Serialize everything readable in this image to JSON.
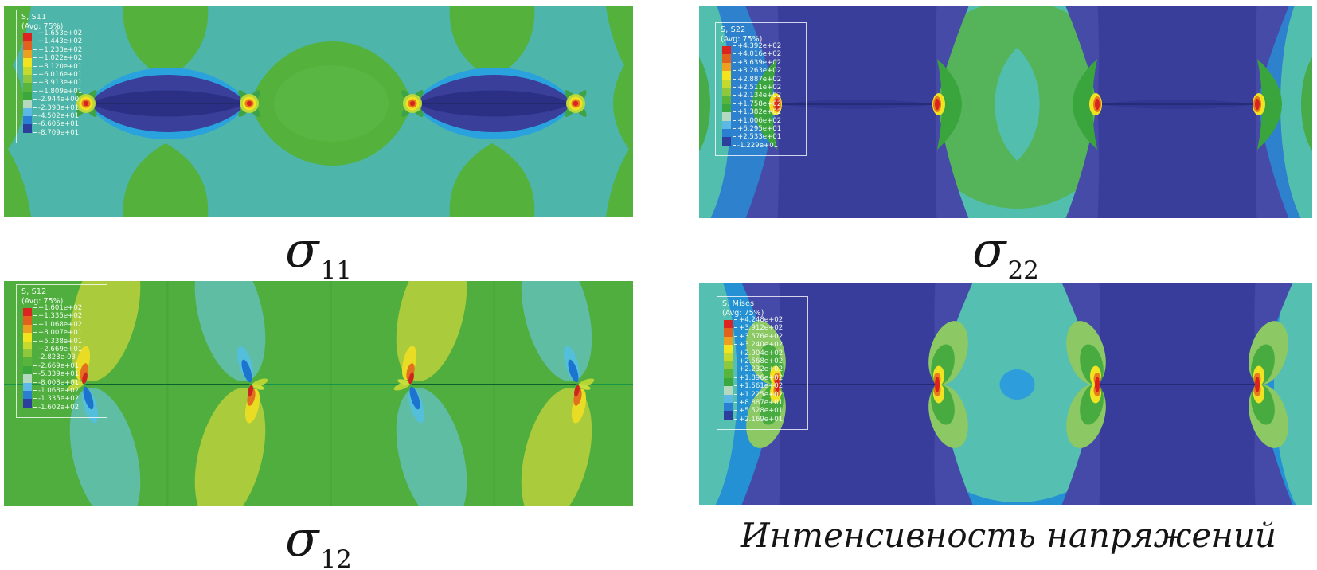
{
  "figure": {
    "background": "#ffffff"
  },
  "palette": {
    "legend_chips": [
      "#dc231f",
      "#e2611d",
      "#eda01f",
      "#f2e51f",
      "#c5da2e",
      "#90c83d",
      "#58b43a",
      "#3aa83c",
      "#b5d9c0",
      "#5cb9e6",
      "#2a7fd0",
      "#2c3f9c"
    ],
    "hot_spot_red": "#d8231f",
    "hot_spot_orange": "#e67c1d",
    "hot_spot_yellow": "#f2e322",
    "s11_background_teal": "#4db5aa",
    "s22_background_blue": "#2e81cc",
    "s12_background_green": "#4fae3d",
    "mises_background_blue": "#2591d5",
    "contour_navy": "#3a3f9a",
    "contour_teal": "#52bfae",
    "contour_green": "#55b45a"
  },
  "panels": [
    {
      "id": "s11",
      "legend": {
        "title": "S, S11",
        "subtitle": "(Avg: 75%)",
        "values": [
          "+1.653e+02",
          "+1.443e+02",
          "+1.233e+02",
          "+1.022e+02",
          "+8.120e+01",
          "+6.016e+01",
          "+3.913e+01",
          "+1.809e+01",
          "-2.944e+00",
          "-2.398e+01",
          "-4.502e+01",
          "-6.605e+01",
          "-8.709e+01"
        ]
      },
      "caption": {
        "symbol": "σ",
        "subscript": "11"
      }
    },
    {
      "id": "s22",
      "legend": {
        "title": "S, S22",
        "subtitle": "(Avg: 75%)",
        "values": [
          "+4.392e+02",
          "+4.016e+02",
          "+3.639e+02",
          "+3.263e+02",
          "+2.887e+02",
          "+2.511e+02",
          "+2.134e+02",
          "+1.758e+02",
          "+1.382e+02",
          "+1.006e+02",
          "+6.295e+01",
          "+2.533e+01",
          "-1.229e+01"
        ]
      },
      "caption": {
        "symbol": "σ",
        "subscript": "22"
      }
    },
    {
      "id": "s12",
      "legend": {
        "title": "S, S12",
        "subtitle": "(Avg: 75%)",
        "values": [
          "+1.601e+02",
          "+1.335e+02",
          "+1.068e+02",
          "+8.007e+01",
          "+5.338e+01",
          "+2.669e+01",
          "-2.823e-03",
          "-2.669e+01",
          "-5.339e+01",
          "-8.008e+01",
          "-1.068e+02",
          "-1.335e+02",
          "-1.602e+02"
        ]
      },
      "caption": {
        "symbol": "σ",
        "subscript": "12"
      }
    },
    {
      "id": "mises",
      "legend": {
        "title": "S, Mises",
        "subtitle": "(Avg: 75%)",
        "values": [
          "+4.248e+02",
          "+3.912e+02",
          "+3.576e+02",
          "+3.240e+02",
          "+2.904e+02",
          "+2.568e+02",
          "+2.232e+02",
          "+1.896e+02",
          "+1.561e+02",
          "+1.225e+02",
          "+8.887e+01",
          "+5.528e+01",
          "+2.169e+01"
        ]
      },
      "caption": {
        "text": "Интенсивность напряжений"
      }
    }
  ],
  "chart_data": [
    {
      "type": "heatmap",
      "variant": "FEA stress contour (Abaqus-style)",
      "field": "S, S11",
      "averaging": "(Avg: 75%)",
      "caption": "σ11",
      "contour_levels": [
        165.3,
        144.3,
        123.3,
        102.2,
        81.2,
        60.16,
        39.13,
        18.09,
        -2.944,
        -23.98,
        -45.02,
        -66.05,
        -87.09
      ],
      "n_color_bands": 12,
      "colorbar": "rainbow red(max) → dark blue(min)",
      "features": "two lens-shaped compressive (navy/cyan) zones along horizontal midline cracks; 4 crack-tip red/yellow hot spots at tips; green tensile patches at top/bottom edges and hexagonal green zone between cracks on teal background"
    },
    {
      "type": "heatmap",
      "variant": "FEA stress contour (Abaqus-style)",
      "field": "S, S22",
      "averaging": "(Avg: 75%)",
      "caption": "σ22",
      "contour_levels": [
        439.2,
        401.6,
        363.9,
        326.3,
        288.7,
        251.1,
        213.4,
        175.8,
        138.2,
        100.6,
        62.95,
        25.33,
        -12.29
      ],
      "n_color_bands": 12,
      "colorbar": "rainbow red(max) → dark blue(min)",
      "features": "tall navy low-stress pillars over each crack, blue background, central teal/green ring zone between cracks, 4 crack-tip red/yellow hot spots with green kidneys facing away from cracks"
    },
    {
      "type": "heatmap",
      "variant": "FEA stress contour (Abaqus-style)",
      "field": "S, S12",
      "averaging": "(Avg: 75%)",
      "caption": "σ12",
      "contour_levels": [
        160.1,
        133.5,
        106.8,
        80.07,
        53.38,
        26.69,
        -0.002823,
        -26.69,
        -53.39,
        -80.08,
        -106.8,
        -133.5,
        -160.2
      ],
      "n_color_bands": 12,
      "colorbar": "rainbow red(max) → dark blue(min)",
      "features": "near-zero (green) shear field with antisymmetric lobes at 4 crack tips: teal/yellow-green teardrops above/below each tip with cyan-blue and yellow-orange-red small lobes; dark green crack line along midline"
    },
    {
      "type": "heatmap",
      "variant": "FEA stress contour (Abaqus-style)",
      "field": "S, Mises",
      "averaging": "(Avg: 75%)",
      "caption": "Интенсивность напряжений",
      "contour_levels": [
        424.8,
        391.2,
        357.6,
        324.0,
        290.4,
        256.8,
        223.2,
        189.6,
        156.1,
        122.5,
        88.87,
        55.28,
        21.69
      ],
      "n_color_bands": 12,
      "colorbar": "rainbow red(max) → dark blue(min)",
      "features": "navy hourglass low-stress pillars over cracks on light blue background, large teal circular zone between cracks with small blue dot at center, butterfly green/yellow/red lobes at 4 crack tips"
    }
  ]
}
